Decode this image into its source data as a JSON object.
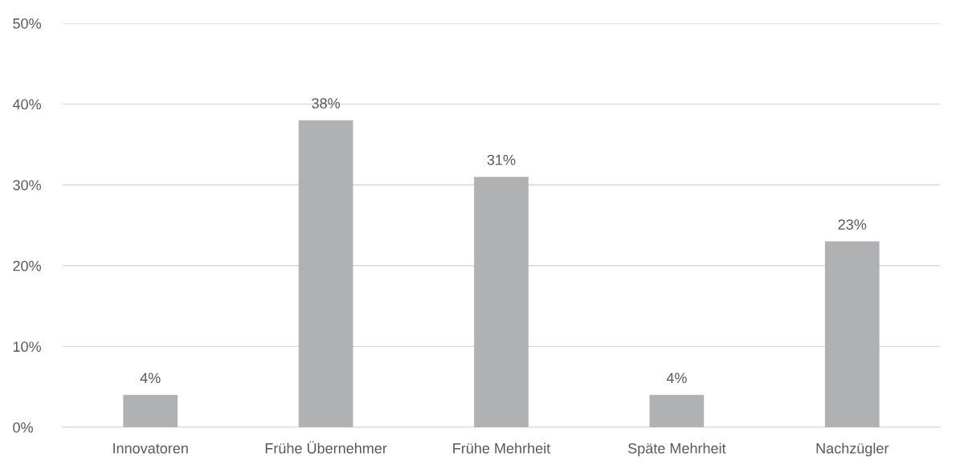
{
  "chart_data": {
    "type": "bar",
    "categories": [
      "Innovatoren",
      "Frühe Übernehmer",
      "Frühe Mehrheit",
      "Späte Mehrheit",
      "Nachzügler"
    ],
    "values": [
      4,
      38,
      31,
      4,
      23
    ],
    "value_labels": [
      "4%",
      "38%",
      "31%",
      "4%",
      "23%"
    ],
    "color": "#b0b1b3",
    "ylim": [
      0,
      50
    ],
    "yticks": [
      {
        "value": 0,
        "label": "0%"
      },
      {
        "value": 10,
        "label": "10%"
      },
      {
        "value": 20,
        "label": "20%"
      },
      {
        "value": 30,
        "label": "30%"
      },
      {
        "value": 40,
        "label": "40%"
      },
      {
        "value": 50,
        "label": "50%"
      }
    ],
    "grid": "y"
  }
}
